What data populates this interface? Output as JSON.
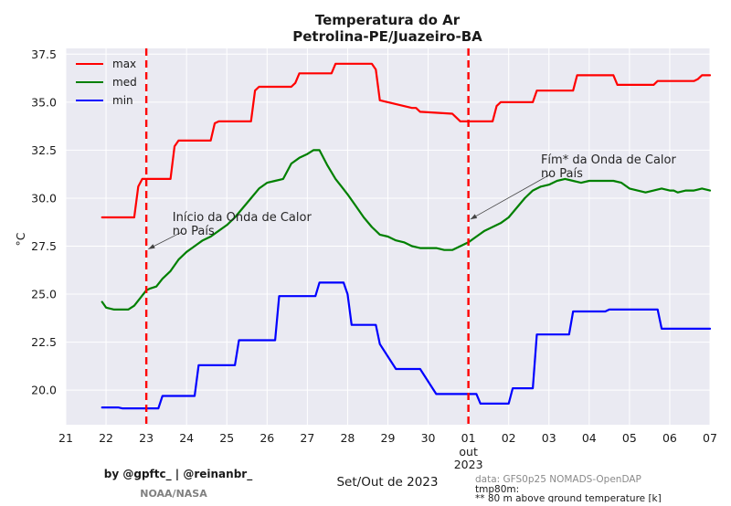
{
  "chart_data": {
    "type": "line",
    "title": "Temperatura do Ar",
    "subtitle": "Petrolina-PE/Juazeiro-BA",
    "xlabel": "Set/Out de 2023",
    "ylabel": "°C",
    "ylim": [
      18.2,
      37.8
    ],
    "y_ticks": [
      "20.0",
      "22.5",
      "25.0",
      "27.5",
      "30.0",
      "32.5",
      "35.0",
      "37.5"
    ],
    "x_ticks": [
      {
        "day": 0,
        "label": "21"
      },
      {
        "day": 1,
        "label": "22"
      },
      {
        "day": 2,
        "label": "23"
      },
      {
        "day": 3,
        "label": "24"
      },
      {
        "day": 4,
        "label": "25"
      },
      {
        "day": 5,
        "label": "26"
      },
      {
        "day": 6,
        "label": "27"
      },
      {
        "day": 7,
        "label": "28"
      },
      {
        "day": 8,
        "label": "29"
      },
      {
        "day": 9,
        "label": "30"
      },
      {
        "day": 10,
        "label": "01",
        "label2": "out",
        "label3": "2023"
      },
      {
        "day": 11,
        "label": "02"
      },
      {
        "day": 12,
        "label": "03"
      },
      {
        "day": 13,
        "label": "04"
      },
      {
        "day": 14,
        "label": "05"
      },
      {
        "day": 15,
        "label": "06"
      },
      {
        "day": 16,
        "label": "07"
      }
    ],
    "grid": true,
    "legend_position": "top-left",
    "series": [
      {
        "name": "max",
        "color": "#ff0000",
        "x": [
          0.9,
          1.7,
          1.8,
          1.9,
          2.6,
          2.7,
          2.8,
          3.6,
          3.7,
          3.8,
          4.6,
          4.7,
          4.8,
          5.6,
          5.7,
          5.8,
          6.6,
          6.7,
          6.8,
          7.6,
          7.7,
          7.8,
          8.6,
          8.7,
          8.8,
          9.6,
          9.7,
          9.8,
          10.6,
          10.7,
          10.8,
          11.6,
          11.7,
          11.8,
          12.6,
          12.7,
          12.8,
          13.6,
          13.7,
          13.8,
          14.6,
          14.7,
          14.8,
          15.6,
          15.7,
          15.8,
          16.0
        ],
        "y": [
          29.0,
          29.0,
          30.6,
          31.0,
          31.0,
          32.7,
          33.0,
          33.0,
          33.9,
          34.0,
          34.0,
          35.6,
          35.8,
          35.8,
          36.0,
          36.5,
          36.5,
          37.0,
          37.0,
          37.0,
          36.7,
          35.1,
          34.7,
          34.7,
          34.5,
          34.4,
          34.2,
          34.0,
          34.0,
          34.8,
          35.0,
          35.0,
          35.6,
          35.6,
          35.6,
          36.4,
          36.4,
          36.4,
          35.9,
          35.9,
          35.9,
          36.1,
          36.1,
          36.1,
          36.2,
          36.4,
          36.4
        ]
      },
      {
        "name": "med",
        "color": "#008000",
        "x": [
          0.9,
          1.0,
          1.2,
          1.4,
          1.55,
          1.7,
          1.85,
          2.0,
          2.1,
          2.25,
          2.4,
          2.6,
          2.8,
          3.0,
          3.2,
          3.4,
          3.6,
          3.8,
          4.0,
          4.2,
          4.4,
          4.6,
          4.8,
          5.0,
          5.2,
          5.4,
          5.6,
          5.8,
          6.0,
          6.15,
          6.3,
          6.5,
          6.7,
          6.85,
          7.0,
          7.2,
          7.4,
          7.6,
          7.8,
          8.0,
          8.2,
          8.4,
          8.6,
          8.8,
          9.0,
          9.2,
          9.4,
          9.6,
          9.8,
          10.0,
          10.2,
          10.4,
          10.6,
          10.8,
          11.0,
          11.2,
          11.4,
          11.6,
          11.8,
          12.0,
          12.2,
          12.4,
          12.6,
          12.8,
          13.0,
          13.2,
          13.4,
          13.6,
          13.8,
          14.0,
          14.2,
          14.4,
          14.6,
          14.8,
          15.0,
          15.1,
          15.2,
          15.4,
          15.6,
          15.8,
          16.0
        ],
        "y": [
          24.6,
          24.3,
          24.2,
          24.2,
          24.2,
          24.4,
          24.8,
          25.2,
          25.3,
          25.4,
          25.8,
          26.2,
          26.8,
          27.2,
          27.5,
          27.8,
          28.0,
          28.3,
          28.6,
          29.0,
          29.5,
          30.0,
          30.5,
          30.8,
          30.9,
          31.0,
          31.8,
          32.1,
          32.3,
          32.5,
          32.5,
          31.7,
          31.0,
          30.6,
          30.2,
          29.6,
          29.0,
          28.5,
          28.1,
          28.0,
          27.8,
          27.7,
          27.5,
          27.4,
          27.4,
          27.4,
          27.3,
          27.3,
          27.5,
          27.7,
          28.0,
          28.3,
          28.5,
          28.7,
          29.0,
          29.5,
          30.0,
          30.4,
          30.6,
          30.7,
          30.9,
          31.0,
          30.9,
          30.8,
          30.9,
          30.9,
          30.9,
          30.9,
          30.8,
          30.5,
          30.4,
          30.3,
          30.4,
          30.5,
          30.4,
          30.4,
          30.3,
          30.4,
          30.4,
          30.5,
          30.4
        ]
      },
      {
        "name": "min",
        "color": "#0000ff",
        "x": [
          0.9,
          1.3,
          1.4,
          2.3,
          2.4,
          3.2,
          3.3,
          4.2,
          4.3,
          5.2,
          5.3,
          6.2,
          6.3,
          6.9,
          7.0,
          7.1,
          7.7,
          7.8,
          8.2,
          8.3,
          8.8,
          9.2,
          9.3,
          10.2,
          10.3,
          11.0,
          11.1,
          11.6,
          11.7,
          12.5,
          12.6,
          13.4,
          13.5,
          14.1,
          14.2,
          14.7,
          14.8,
          15.6,
          15.7,
          16.0
        ],
        "y": [
          19.1,
          19.1,
          19.05,
          19.05,
          19.7,
          19.7,
          21.3,
          21.3,
          22.6,
          22.6,
          24.9,
          24.9,
          25.6,
          25.6,
          25.0,
          23.4,
          23.4,
          22.4,
          21.1,
          21.1,
          21.1,
          19.8,
          19.8,
          19.8,
          19.3,
          19.3,
          20.1,
          20.1,
          22.9,
          22.9,
          24.1,
          24.1,
          24.2,
          24.2,
          24.2,
          24.2,
          23.2,
          23.2,
          23.2,
          23.2
        ]
      }
    ],
    "vlines": [
      {
        "day": 2.0,
        "color": "#ff0000",
        "style": "dashed"
      },
      {
        "day": 10.0,
        "color": "#ff0000",
        "style": "dashed"
      }
    ],
    "annotations": [
      {
        "lines": [
          "Início da Onda de Calor",
          "no País"
        ],
        "point_day": 2.05,
        "point_y": 27.35,
        "text_day": 2.65,
        "text_y": 28.8
      },
      {
        "lines": [
          "Fím* da Onda de Calor",
          "no País"
        ],
        "point_day": 10.05,
        "point_y": 28.9,
        "text_day": 11.8,
        "text_y": 31.8
      }
    ]
  },
  "credits": {
    "authors": "by @gpftc_ | @reinanbr_",
    "agency": "NOAA/NASA"
  },
  "source": {
    "data_line": "data: GFS0p25 NOMADS-OpenDAP",
    "var_line": "tmp80m:",
    "note_line": " ** 80 m above ground temperature [k]"
  }
}
